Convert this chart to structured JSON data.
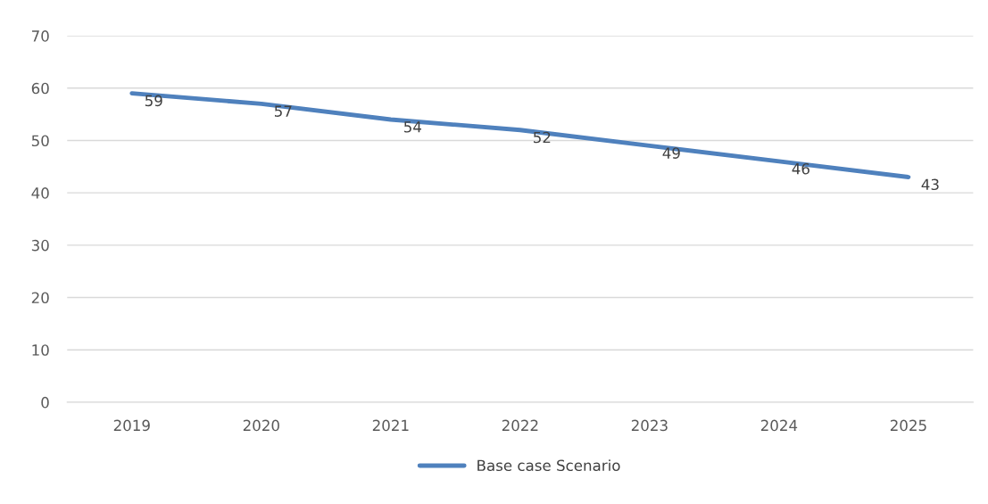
{
  "chart_data": {
    "type": "line",
    "categories": [
      "2019",
      "2020",
      "2021",
      "2022",
      "2023",
      "2024",
      "2025"
    ],
    "series": [
      {
        "name": "Base case Scenario",
        "color": "#4f81bd",
        "values": [
          59,
          57,
          54,
          52,
          49,
          46,
          43
        ]
      }
    ],
    "ylim": [
      0,
      70
    ],
    "yticks": [
      0,
      10,
      20,
      30,
      40,
      50,
      60,
      70
    ],
    "grid": "y",
    "legend": "bottom",
    "data_labels": true,
    "marker": "none",
    "line_style": "solid"
  }
}
